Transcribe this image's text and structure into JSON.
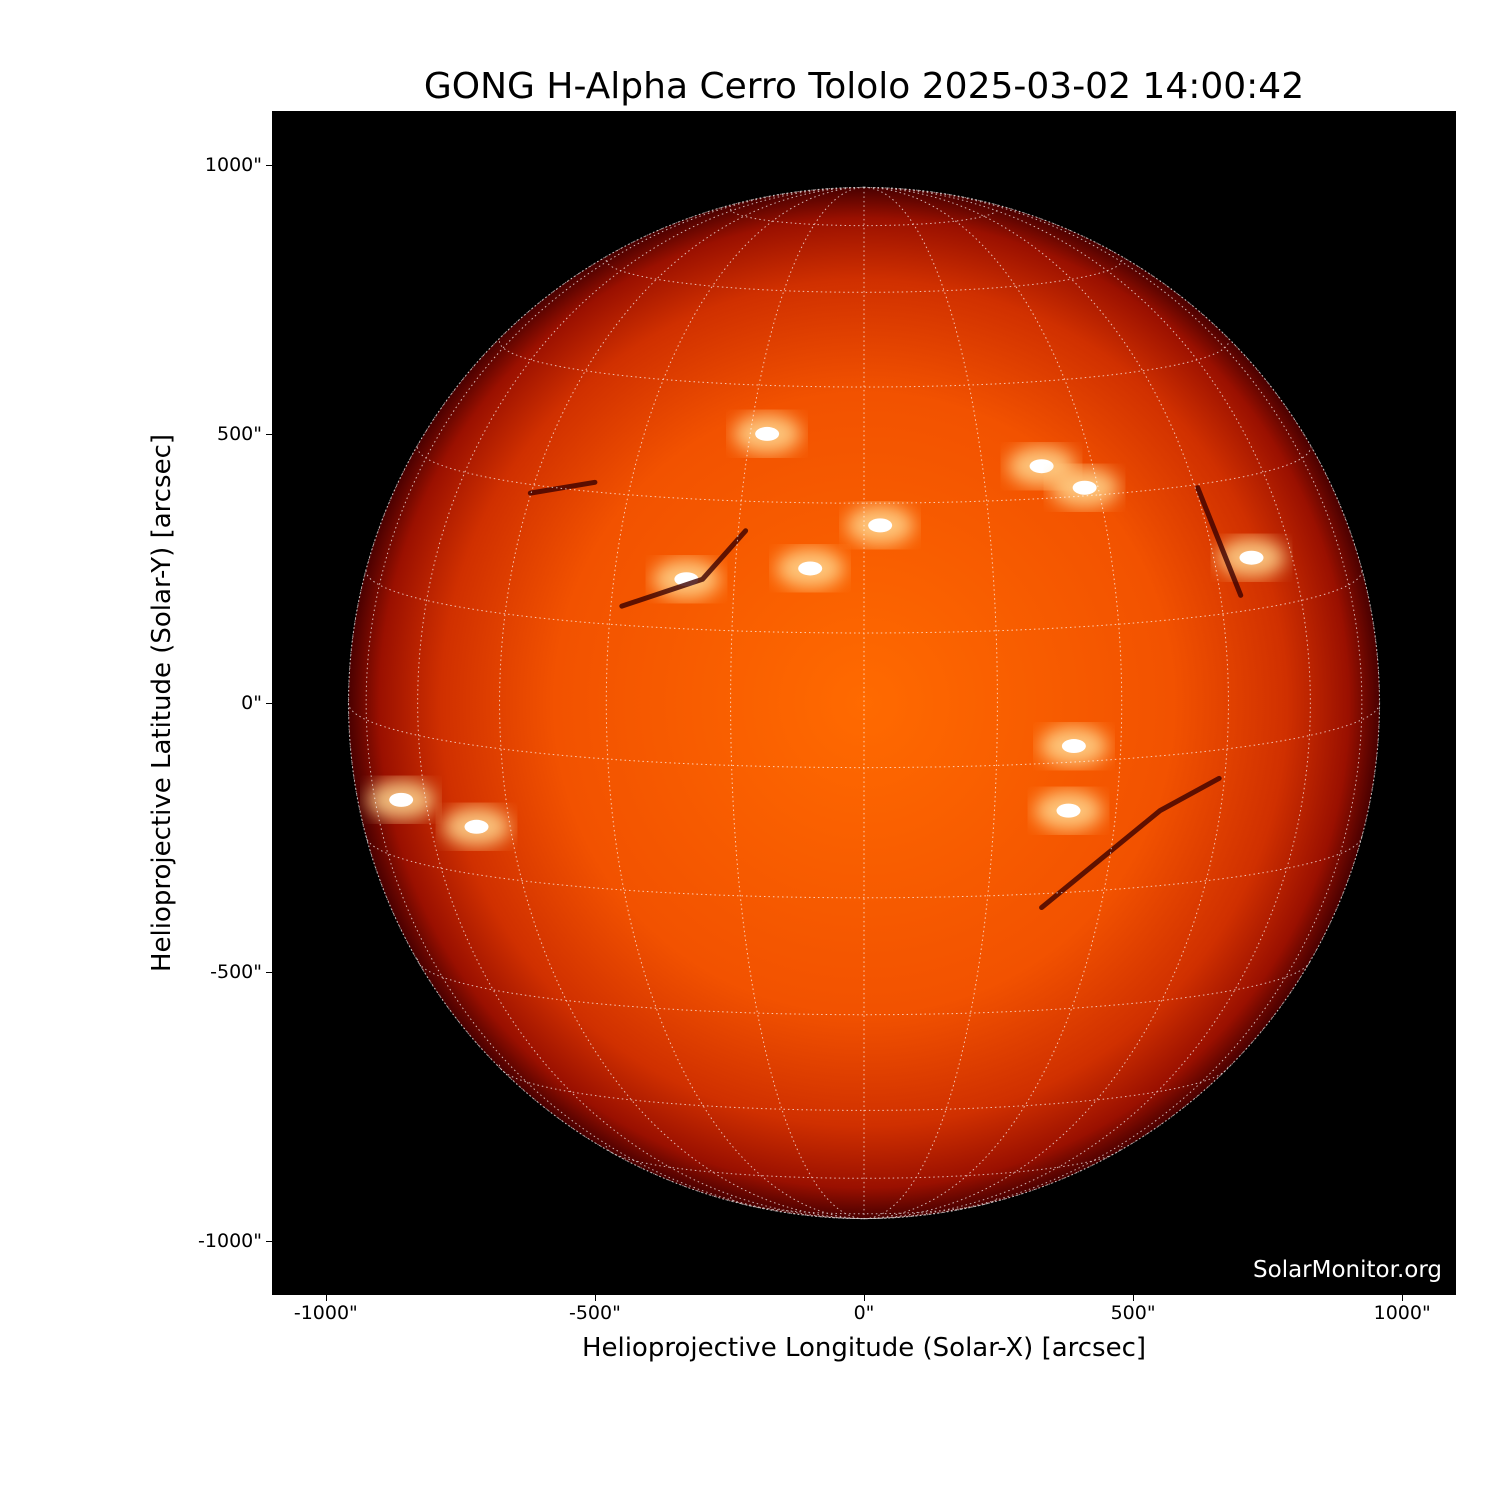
{
  "chart_data": {
    "type": "heatmap",
    "title": "GONG H-Alpha Cerro Tololo 2025-03-02 14:00:42",
    "xlabel": "Helioprojective Longitude (Solar-X) [arcsec]",
    "ylabel": "Helioprojective Latitude (Solar-Y) [arcsec]",
    "xlim": [
      -1100,
      1100
    ],
    "ylim": [
      -1100,
      1100
    ],
    "xticks": [
      -1000,
      -500,
      0,
      500,
      1000
    ],
    "yticks": [
      -1000,
      -500,
      0,
      500,
      1000
    ],
    "xtick_labels": [
      "-1000\"",
      "-500\"",
      "0\"",
      "500\"",
      "1000\""
    ],
    "ytick_labels": [
      "1000\"",
      "500\"",
      "0\"",
      "-500\"",
      "-1000\""
    ],
    "solar_radius_arcsec": 958,
    "colormap": "red-orange-white (H-alpha)",
    "grid": true,
    "grid_spacing_deg": 15,
    "plage_regions_arcsec": [
      {
        "x": -180,
        "y": 500
      },
      {
        "x": 30,
        "y": 330
      },
      {
        "x": 330,
        "y": 440
      },
      {
        "x": 410,
        "y": 400
      },
      {
        "x": -330,
        "y": 230
      },
      {
        "x": -100,
        "y": 250
      },
      {
        "x": 390,
        "y": -80
      },
      {
        "x": 380,
        "y": -200
      },
      {
        "x": -860,
        "y": -180
      },
      {
        "x": -720,
        "y": -230
      },
      {
        "x": 720,
        "y": 270
      }
    ]
  },
  "watermark": "SolarMonitor.org",
  "colors": {
    "disk_center": "#ff6a00",
    "disk_limb": "#6a0000",
    "background": "#000000",
    "grid": "#ffffff"
  }
}
